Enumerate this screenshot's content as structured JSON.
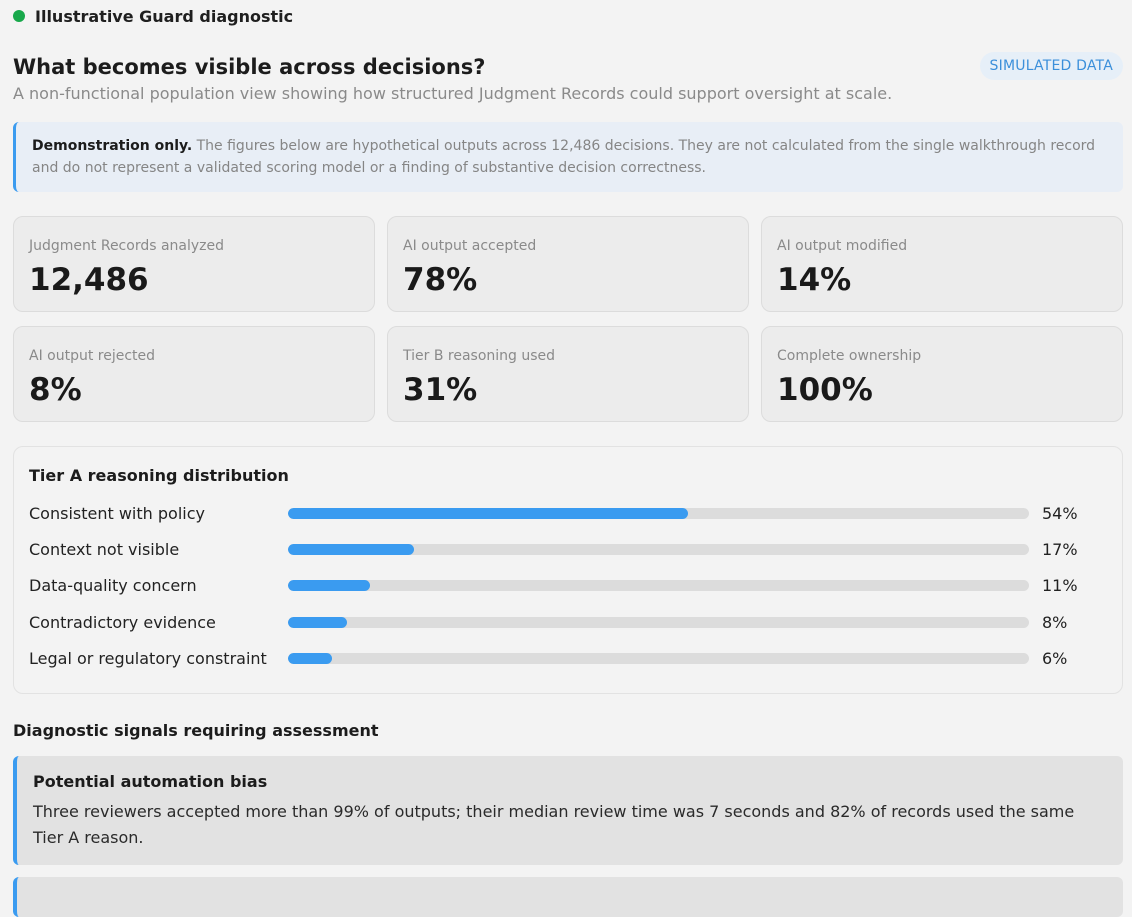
{
  "app": {
    "title": "Illustrative Guard diagnostic"
  },
  "header": {
    "title": "What becomes visible across decisions?",
    "subtitle": "A non-functional population view showing how structured Judgment Records could support oversight at scale.",
    "badge": "SIMULATED DATA"
  },
  "notice": {
    "bold": "Demonstration only.",
    "text": " The figures below are hypothetical outputs across 12,486 decisions. They are not calculated from the single walkthrough record and do not represent a validated scoring model or a finding of substantive decision correctness."
  },
  "stats": [
    {
      "label": "Judgment Records analyzed",
      "value": "12,486"
    },
    {
      "label": "AI output accepted",
      "value": "78%"
    },
    {
      "label": "AI output modified",
      "value": "14%"
    },
    {
      "label": "AI output rejected",
      "value": "8%"
    },
    {
      "label": "Tier B reasoning used",
      "value": "31%"
    },
    {
      "label": "Complete ownership",
      "value": "100%"
    }
  ],
  "distribution": {
    "title": "Tier A reasoning distribution",
    "rows": [
      {
        "label": "Consistent with policy",
        "percent": 54,
        "display": "54%"
      },
      {
        "label": "Context not visible",
        "percent": 17,
        "display": "17%"
      },
      {
        "label": "Data-quality concern",
        "percent": 11,
        "display": "11%"
      },
      {
        "label": "Contradictory evidence",
        "percent": 8,
        "display": "8%"
      },
      {
        "label": "Legal or regulatory constraint",
        "percent": 6,
        "display": "6%"
      }
    ],
    "bar_color": "#3a9bf0",
    "track_color": "#dcdcdc"
  },
  "signals": {
    "title": "Diagnostic signals requiring assessment",
    "items": [
      {
        "title": "Potential automation bias",
        "text": "Three reviewers accepted more than 99% of outputs; their median review time was 7 seconds and 82% of records used the same Tier A reason."
      }
    ]
  },
  "colors": {
    "status_dot": "#18a84b",
    "accent": "#3a9bf0",
    "badge_text": "#3b8fda"
  }
}
